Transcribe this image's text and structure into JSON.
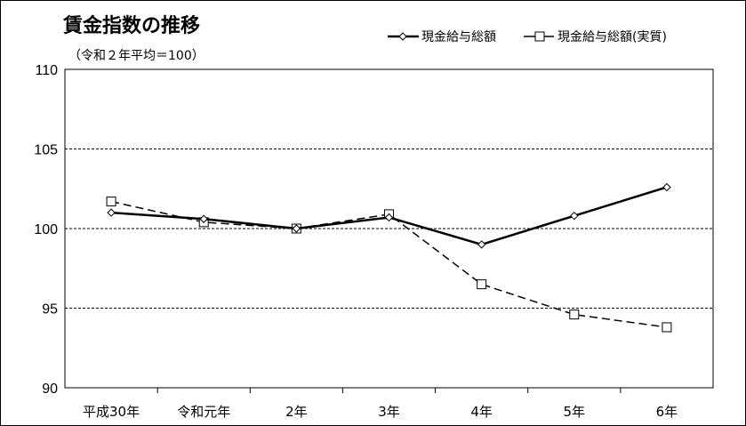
{
  "chart_data": {
    "type": "line",
    "title": "賃金指数の推移",
    "subtitle": "（令和２年平均＝100）",
    "categories": [
      "平成30年",
      "令和元年",
      "2年",
      "3年",
      "4年",
      "5年",
      "6年"
    ],
    "ylim": [
      90,
      110
    ],
    "yticks": [
      "90",
      "95",
      "100",
      "105",
      "110"
    ],
    "ytick_values": [
      90,
      95,
      100,
      105,
      110
    ],
    "grid": "horizontal dashed",
    "legend_position": "top-right",
    "series": [
      {
        "name": "現金給与総額",
        "values": [
          101.0,
          100.6,
          100.0,
          100.7,
          99.0,
          100.8,
          102.6
        ],
        "style": "solid",
        "marker": "diamond",
        "color": "#000000"
      },
      {
        "name": "現金給与総額(実質)",
        "values": [
          101.7,
          100.4,
          100.0,
          100.9,
          96.5,
          94.6,
          93.8
        ],
        "style": "dashed",
        "marker": "square",
        "color": "#000000"
      }
    ]
  }
}
